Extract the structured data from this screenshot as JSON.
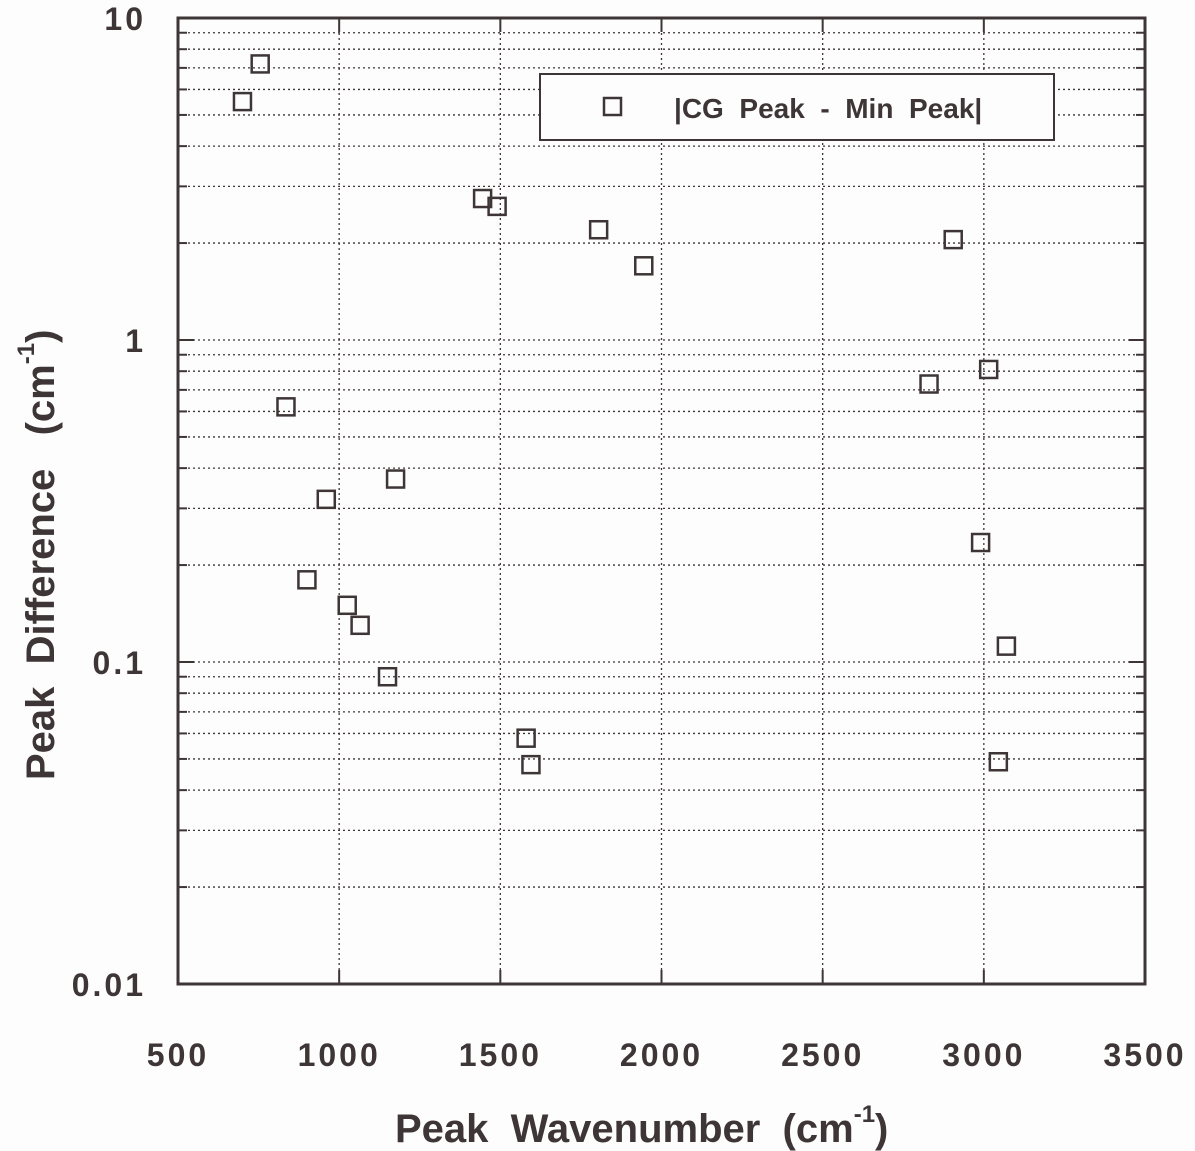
{
  "chart_data": {
    "type": "scatter",
    "x_scale": "linear",
    "y_scale": "log",
    "xlim": [
      500,
      3500
    ],
    "ylim": [
      0.01,
      10
    ],
    "x_ticks": [
      500,
      1000,
      1500,
      2000,
      2500,
      3000,
      3500
    ],
    "x_tick_labels": [
      "500",
      "1000",
      "1500",
      "2000",
      "2500",
      "3000",
      "3500"
    ],
    "y_ticks": [
      0.01,
      0.1,
      1,
      10
    ],
    "y_tick_labels": [
      "0.01",
      "0.1",
      "1",
      "10"
    ],
    "xlabel": "Peak  Wavenumber  (cm",
    "xlabel_sup": "-1",
    "xlabel_end": ")",
    "ylabel": "Peak  Difference   (cm",
    "ylabel_sup": "-1",
    "ylabel_end": ")",
    "grid": true,
    "legend_position": "top-right",
    "marker": "open-square",
    "colors": {
      "ink": "#3d3536",
      "background": "#fdfdfd"
    },
    "series": [
      {
        "name": "|CG  Peak  -  Min  Peak|",
        "points": [
          [
            700,
            5.5
          ],
          [
            755,
            7.2
          ],
          [
            835,
            0.62
          ],
          [
            900,
            0.18
          ],
          [
            960,
            0.32
          ],
          [
            1025,
            0.15
          ],
          [
            1065,
            0.13
          ],
          [
            1150,
            0.09
          ],
          [
            1175,
            0.37
          ],
          [
            1445,
            2.75
          ],
          [
            1490,
            2.6
          ],
          [
            1580,
            0.058
          ],
          [
            1595,
            0.048
          ],
          [
            1805,
            2.2
          ],
          [
            1945,
            1.7
          ],
          [
            2830,
            0.73
          ],
          [
            2905,
            2.05
          ],
          [
            2990,
            0.235
          ],
          [
            3015,
            0.81
          ],
          [
            3045,
            0.049
          ],
          [
            3070,
            0.112
          ]
        ]
      }
    ]
  }
}
